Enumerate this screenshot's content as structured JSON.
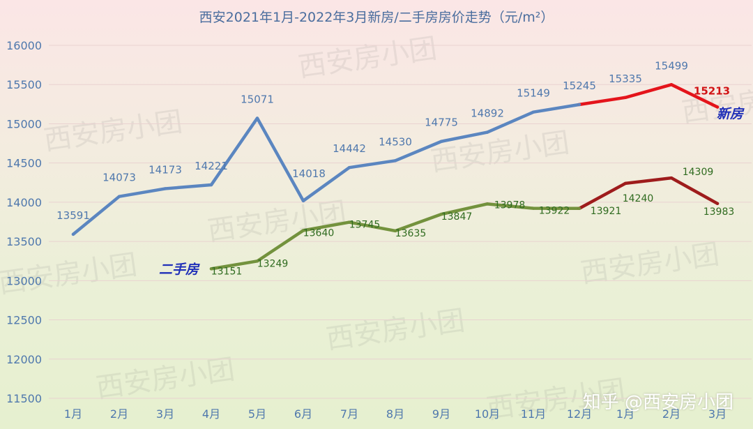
{
  "chart_data": {
    "type": "line",
    "title": "西安2021年1月-2022年3月新房/二手房房价走势（元/m²）",
    "categories": [
      "1月",
      "2月",
      "3月",
      "4月",
      "5月",
      "6月",
      "7月",
      "8月",
      "9月",
      "10月",
      "11月",
      "12月",
      "1月",
      "2月",
      "3月"
    ],
    "y_ticks": [
      "11500",
      "12000",
      "12500",
      "13000",
      "13500",
      "14000",
      "14500",
      "15000",
      "15500",
      "16000"
    ],
    "ylim": [
      11500,
      16000
    ],
    "grid": true,
    "series": [
      {
        "name": "新房",
        "values": [
          13591,
          14073,
          14173,
          14221,
          15071,
          14018,
          14442,
          14530,
          14775,
          14892,
          15149,
          15245,
          15335,
          15499,
          15213
        ],
        "labels": [
          "13591",
          "14073",
          "14173",
          "14221",
          "15071",
          "14018",
          "14442",
          "14530",
          "14775",
          "14892",
          "15149",
          "15245",
          "15335",
          "15499",
          "15213"
        ],
        "colors": [
          "#5b86c0",
          "#e4141b"
        ]
      },
      {
        "name": "二手房",
        "values": [
          null,
          null,
          null,
          13151,
          13249,
          13640,
          13745,
          13635,
          13847,
          13978,
          13922,
          13921,
          14240,
          14309,
          13983
        ],
        "labels": [
          "",
          "",
          "",
          "13151",
          "13249",
          "13640",
          "13745",
          "13635",
          "13847",
          "13978",
          "13922",
          "13921",
          "14240",
          "14309",
          "13983"
        ],
        "colors": [
          "#73923d",
          "#9e1c1c"
        ]
      }
    ]
  },
  "watermark": "西安房小团",
  "credit": "知乎 @西安房小团"
}
